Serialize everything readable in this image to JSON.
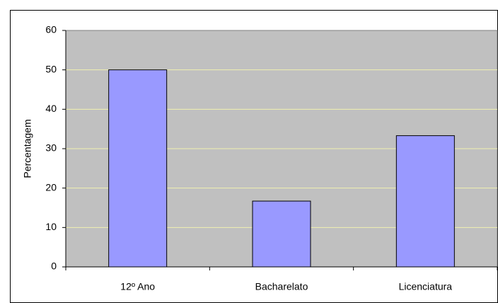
{
  "chart_data": {
    "type": "bar",
    "y_label": "Percentagem",
    "categories": [
      "12º Ano",
      "Bacharelato",
      "Licenciatura"
    ],
    "values": [
      50,
      16.7,
      33.3
    ],
    "color": "#9999ff",
    "ylim": [
      0,
      60
    ],
    "yticks": [
      0,
      10,
      20,
      30,
      40,
      50,
      60
    ],
    "grid": true
  }
}
